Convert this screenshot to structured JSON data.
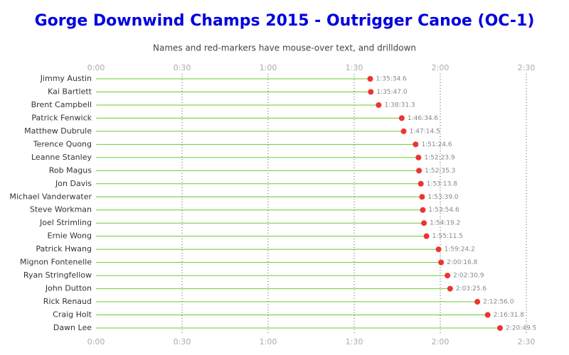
{
  "chart_data": {
    "type": "dot",
    "title": "Gorge Downwind Champs 2015 - Outrigger Canoe (OC-1)",
    "subtitle": "Names and red-markers have mouse-over text, and drilldown",
    "categories": [
      "Jimmy Austin",
      "Kai Bartlett",
      "Brent Campbell",
      "Patrick Fenwick",
      "Matthew Dubrule",
      "Terence Quong",
      "Leanne Stanley",
      "Rob Magus",
      "Jon Davis",
      "Michael Vanderwater",
      "Steve Workman",
      "Joel Strimling",
      "Ernie Wong",
      "Patrick Hwang",
      "Mignon Fontenelle",
      "Ryan Stringfellow",
      "John Dutton",
      "Rick Renaud",
      "Craig Holt",
      "Dawn Lee"
    ],
    "values": [
      5734.6,
      5747.0,
      5911.3,
      6394.6,
      6434.5,
      6684.6,
      6743.9,
      6755.3,
      6793.8,
      6819.0,
      6834.6,
      6859.2,
      6911.5,
      7164.2,
      7216.8,
      7350.9,
      7405.6,
      7976.0,
      8191.8,
      8449.5
    ],
    "value_labels": [
      "1:35:34.6",
      "1:35:47.0",
      "1:38:31.3",
      "1:46:34.6",
      "1:47:14.5",
      "1:51:24.6",
      "1:52:23.9",
      "1:52:35.3",
      "1:53:13.8",
      "1:53:39.0",
      "1:53:54.6",
      "1:54:19.2",
      "1:55:11.5",
      "1:59:24.2",
      "2:00:16.8",
      "2:02:30.9",
      "2:03:25.6",
      "2:12:56.0",
      "2:16:31.8",
      "2:20:49.5"
    ],
    "color": "#ee3333",
    "stem_color": "#66cc33",
    "xlim": [
      0,
      9000
    ],
    "xticks": [
      {
        "value": 0,
        "label": "0:00"
      },
      {
        "value": 1800,
        "label": "0:30"
      },
      {
        "value": 3600,
        "label": "1:00"
      },
      {
        "value": 5400,
        "label": "1:30"
      },
      {
        "value": 7200,
        "label": "2:00"
      },
      {
        "value": 9000,
        "label": "2:30"
      }
    ],
    "grid": true
  }
}
